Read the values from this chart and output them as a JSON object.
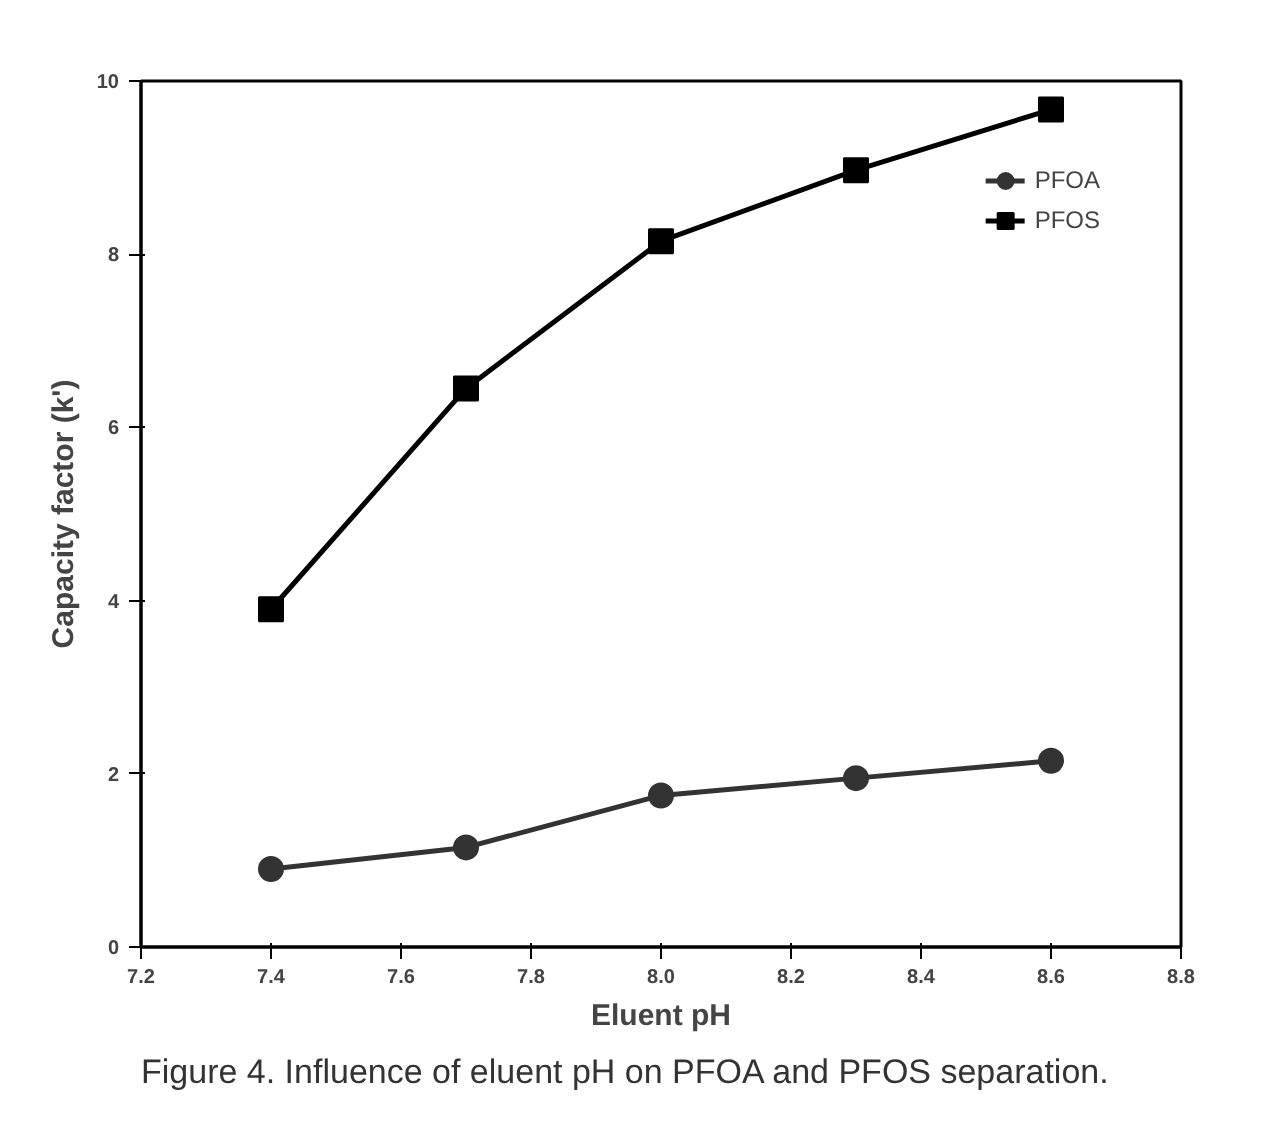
{
  "chart_data": {
    "type": "line",
    "xlabel": "Eluent pH",
    "ylabel": "Capacity factor (k')",
    "x": [
      7.4,
      7.7,
      8.0,
      8.3,
      8.6
    ],
    "series": [
      {
        "name": "PFOA",
        "color": "#333333",
        "marker": "circle",
        "values": [
          0.9,
          1.15,
          1.75,
          1.95,
          2.15
        ]
      },
      {
        "name": "PFOS",
        "color": "#000000",
        "marker": "square",
        "values": [
          3.9,
          6.45,
          8.15,
          8.97,
          9.67
        ]
      }
    ],
    "xlim": [
      7.2,
      8.8
    ],
    "xticks": [
      {
        "value": 7.2,
        "label": "7.2"
      },
      {
        "value": 7.4,
        "label": "7.4"
      },
      {
        "value": 7.6,
        "label": "7.6"
      },
      {
        "value": 7.8,
        "label": "7.8"
      },
      {
        "value": 8.0,
        "label": "8.0"
      },
      {
        "value": 8.2,
        "label": "8.2"
      },
      {
        "value": 8.4,
        "label": "8.4"
      },
      {
        "value": 8.6,
        "label": "8.6"
      },
      {
        "value": 8.8,
        "label": "8.8"
      }
    ],
    "ylim": [
      0,
      10
    ],
    "yticks": [
      0,
      2,
      4,
      6,
      8,
      10
    ],
    "grid": false,
    "legend": "top right",
    "line_style": "solid",
    "annotations": [
      "Figure 4. Influence of eluent pH on PFOA and PFOS separation."
    ]
  }
}
